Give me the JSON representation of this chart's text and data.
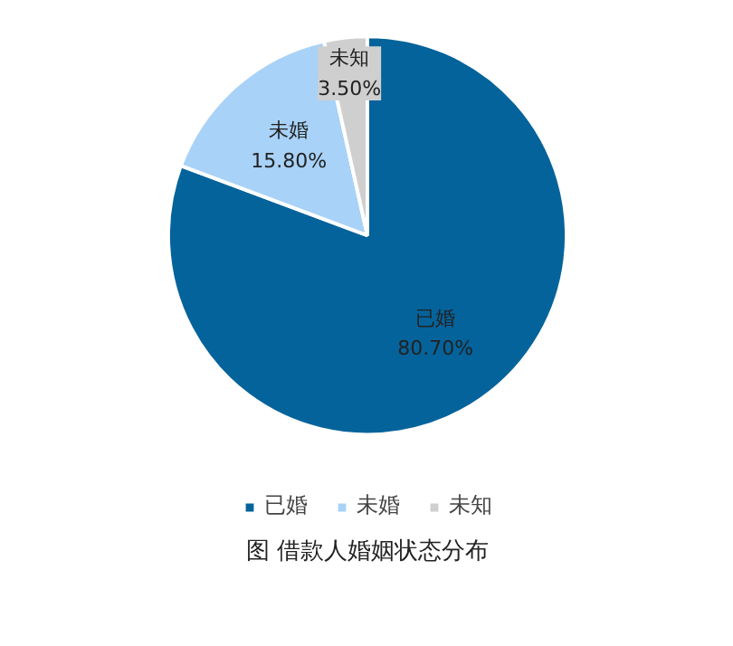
{
  "chart_data": {
    "type": "pie",
    "title": "图 借款人婚姻状态分布",
    "categories": [
      "已婚",
      "未婚",
      "未知"
    ],
    "values": [
      80.7,
      15.8,
      3.5
    ],
    "colors": [
      "#05639b",
      "#a8d2f7",
      "#cfcfcf"
    ],
    "value_labels": [
      "80.70%",
      "15.80%",
      "3.50%"
    ],
    "legend": "bottom"
  }
}
